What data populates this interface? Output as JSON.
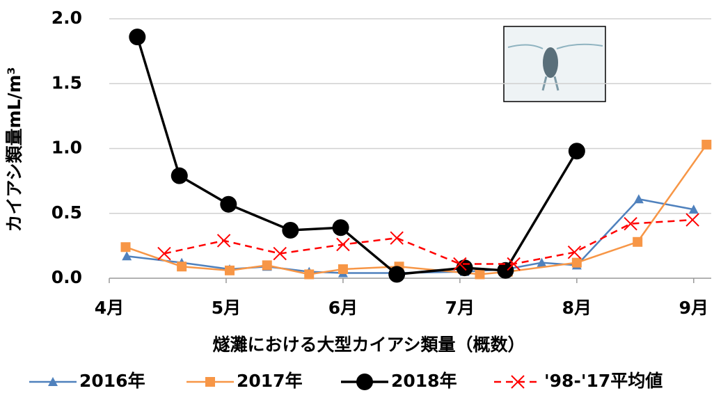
{
  "chart_data": {
    "type": "line",
    "y_label": "カイアシ類量mL/m³",
    "x_label": "燧灘における大型カイアシ類量（概数）",
    "xlim": [
      4,
      9.15
    ],
    "xticks": [
      {
        "value": 4,
        "label": "4月"
      },
      {
        "value": 5,
        "label": "5月"
      },
      {
        "value": 6,
        "label": "6月"
      },
      {
        "value": 7,
        "label": "7月"
      },
      {
        "value": 8,
        "label": "8月"
      },
      {
        "value": 9,
        "label": "9月"
      }
    ],
    "ylim": [
      0,
      2
    ],
    "yticks": [
      {
        "value": 0,
        "label": "0.0"
      },
      {
        "value": 0.5,
        "label": "0.5"
      },
      {
        "value": 1,
        "label": "1.0"
      },
      {
        "value": 1.5,
        "label": "1.5"
      },
      {
        "value": 2,
        "label": "2.0"
      }
    ],
    "grid": true,
    "series": [
      {
        "name": "2016年",
        "color": "#4f81bd",
        "marker": "triangle",
        "dash": false,
        "x": [
          4.15,
          4.62,
          5.03,
          5.35,
          5.71,
          6.0,
          6.46,
          7.04,
          7.4,
          7.7,
          8.0,
          8.53,
          9.0
        ],
        "values": [
          0.17,
          0.12,
          0.07,
          0.09,
          0.05,
          0.04,
          0.04,
          0.05,
          0.07,
          0.12,
          0.1,
          0.61,
          0.53
        ]
      },
      {
        "name": "2017年",
        "color": "#f79646",
        "marker": "square",
        "dash": false,
        "x": [
          4.14,
          4.62,
          5.03,
          5.35,
          5.71,
          6.0,
          6.48,
          7.17,
          7.41,
          8.0,
          8.52,
          9.11
        ],
        "values": [
          0.24,
          0.09,
          0.06,
          0.1,
          0.03,
          0.07,
          0.09,
          0.03,
          0.05,
          0.12,
          0.28,
          1.03
        ]
      },
      {
        "name": "2018年",
        "color": "#000000",
        "marker": "circle",
        "dash": false,
        "x": [
          4.24,
          4.6,
          5.02,
          5.55,
          5.98,
          6.46,
          7.04,
          7.39,
          8.0
        ],
        "values": [
          1.86,
          0.79,
          0.57,
          0.37,
          0.39,
          0.03,
          0.08,
          0.06,
          0.98
        ]
      },
      {
        "name": "'98-'17平均値",
        "color": "#ff0000",
        "marker": "cross",
        "dash": true,
        "x": [
          4.47,
          4.98,
          5.46,
          6.0,
          6.46,
          7.0,
          7.46,
          7.98,
          8.46,
          8.99
        ],
        "values": [
          0.19,
          0.29,
          0.19,
          0.26,
          0.31,
          0.11,
          0.11,
          0.2,
          0.42,
          0.45
        ]
      }
    ]
  }
}
